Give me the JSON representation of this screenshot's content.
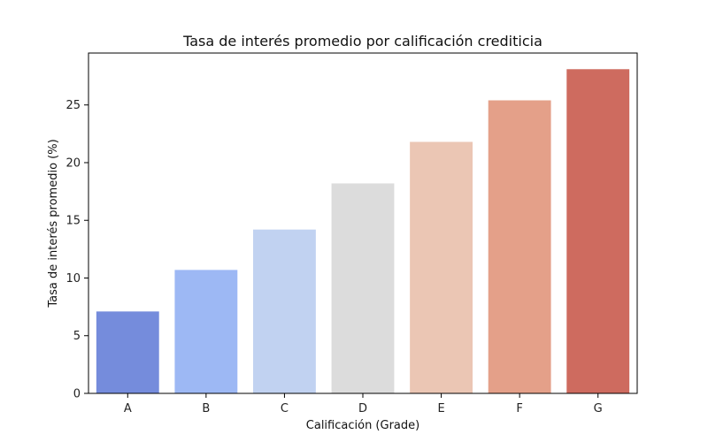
{
  "chart_data": {
    "type": "bar",
    "title": "Tasa de interés promedio por calificación crediticia",
    "xlabel": "Calificación (Grade)",
    "ylabel": "Tasa de interés promedio (%)",
    "categories": [
      "A",
      "B",
      "C",
      "D",
      "E",
      "F",
      "G"
    ],
    "values": [
      7.1,
      10.7,
      14.2,
      18.2,
      21.8,
      25.4,
      28.1
    ],
    "ylim": [
      0,
      29.5
    ],
    "yticks": [
      0,
      5,
      10,
      15,
      20,
      25
    ],
    "colors": [
      "#758cdc",
      "#9db8f4",
      "#c1d2f1",
      "#dcdcdc",
      "#ebc6b4",
      "#e4a089",
      "#ce6b5f"
    ],
    "grid": false,
    "legend": "none"
  }
}
